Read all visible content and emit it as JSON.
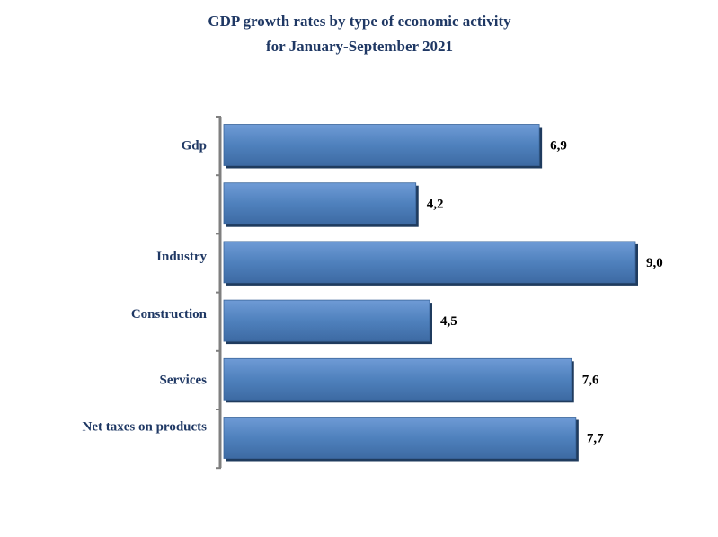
{
  "chart_data": {
    "type": "bar",
    "orientation": "horizontal",
    "title": "GDP growth rates by type of economic activity",
    "subtitle": "for January-September 2021",
    "categories": [
      "Gdp",
      "",
      "Industry",
      "Construction",
      "Services",
      "Net taxes on products"
    ],
    "values": [
      6.9,
      4.2,
      9.0,
      4.5,
      7.6,
      7.7
    ],
    "value_labels": [
      "6,9",
      "4,2",
      "9,0",
      "4,5",
      "7,6",
      "7,7"
    ],
    "xlim": [
      0,
      9.0
    ],
    "xlabel": "",
    "ylabel": "",
    "grid": false,
    "legend": "none",
    "colors": {
      "bar_fill": "#4f81bd",
      "bar_shadow": "#1f3b5e",
      "axis": "#7f7f7f",
      "title": "#1f3864",
      "label": "#1f3864",
      "value": "#000000"
    }
  }
}
